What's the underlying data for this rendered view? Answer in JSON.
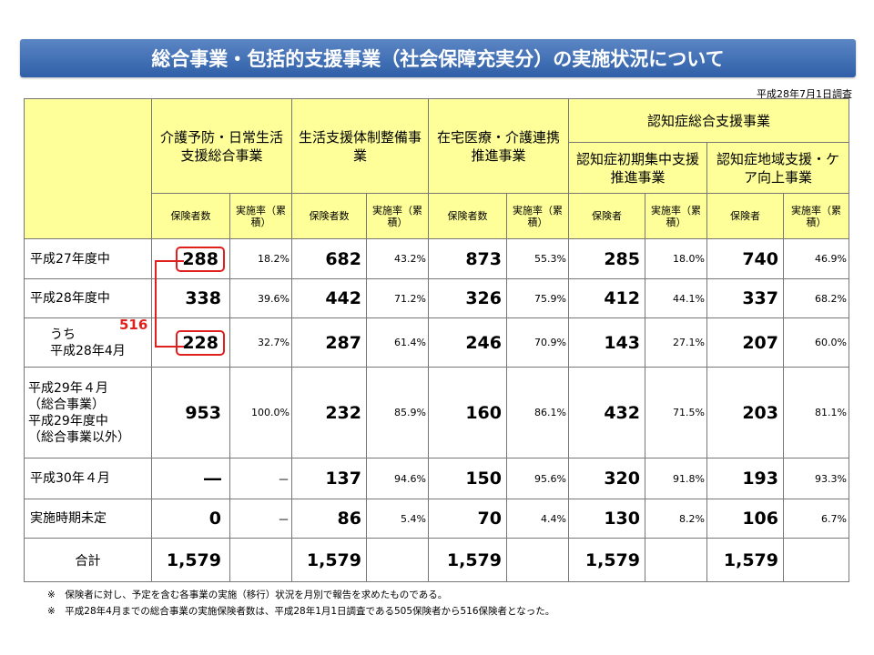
{
  "title": "総合事業・包括的支援事業（社会保障充実分）の実施状況について",
  "survey_date": "平成28年7月1日調査",
  "headers": {
    "col1": "介護予防・日常生活支援総合事業",
    "col2": "生活支援体制整備事業",
    "col3": "在宅医療・介護連携推進事業",
    "col4_group": "認知症総合支援事業",
    "col4a": "認知症初期集中支援推進事業",
    "col4b": "認知症地域支援・ケア向上事業",
    "insurers_count": "保険者数",
    "insurers": "保険者",
    "rate_cum": "実施率（累積）"
  },
  "rows": [
    {
      "label": "平成27年度中",
      "c1": "288",
      "r1": "18.2%",
      "c2": "682",
      "r2": "43.2%",
      "c3": "873",
      "r3": "55.3%",
      "c4": "285",
      "r4": "18.0%",
      "c5": "740",
      "r5": "46.9%"
    },
    {
      "label": "平成28年度中",
      "c1": "338",
      "r1": "39.6%",
      "c2": "442",
      "r2": "71.2%",
      "c3": "326",
      "r3": "75.9%",
      "c4": "412",
      "r4": "44.1%",
      "c5": "337",
      "r5": "68.2%"
    },
    {
      "label_a": "うち",
      "label_b": "平成28年4月",
      "c1": "228",
      "r1": "32.7%",
      "c2": "287",
      "r2": "61.4%",
      "c3": "246",
      "r3": "70.9%",
      "c4": "143",
      "r4": "27.1%",
      "c5": "207",
      "r5": "60.0%"
    },
    {
      "label_a": "平成29年４月",
      "label_b": "（総合事業）",
      "label_c": "平成29年度中",
      "label_d": "（総合事業以外）",
      "c1": "953",
      "r1": "100.0%",
      "c2": "232",
      "r2": "85.9%",
      "c3": "160",
      "r3": "86.1%",
      "c4": "432",
      "r4": "71.5%",
      "c5": "203",
      "r5": "81.1%"
    },
    {
      "label": "平成30年４月",
      "c1": "―",
      "r1": "－",
      "c2": "137",
      "r2": "94.6%",
      "c3": "150",
      "r3": "95.6%",
      "c4": "320",
      "r4": "91.8%",
      "c5": "193",
      "r5": "93.3%"
    },
    {
      "label": "実施時期未定",
      "c1": "0",
      "r1": "－",
      "c2": "86",
      "r2": "5.4%",
      "c3": "70",
      "r3": "4.4%",
      "c4": "130",
      "r4": "8.2%",
      "c5": "106",
      "r5": "6.7%"
    },
    {
      "label": "合計",
      "c1": "1,579",
      "c2": "1,579",
      "c3": "1,579",
      "c4": "1,579",
      "c5": "1,579"
    }
  ],
  "annotation_516": "516",
  "notes": [
    "※　保険者に対し、予定を含む各事業の実施（移行）状況を月別で報告を求めたものである。",
    "※　平成28年4月までの総合事業の実施保険者数は、平成28年1月1日調査である505保険者から516保険者となった。"
  ],
  "colors": {
    "header_bg": "#ffff99",
    "banner": "#2f5fa8",
    "highlight": "#e0201c"
  }
}
